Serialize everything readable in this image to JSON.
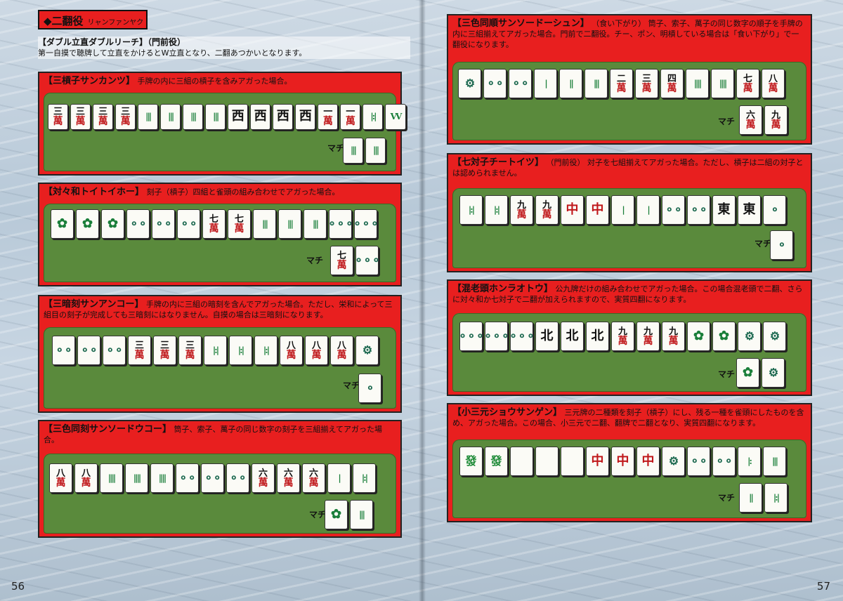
{
  "left_page": {
    "page_number": "56",
    "section_tag": "◆二翻役",
    "section_tag_reading": "リャンファンヤク",
    "intro": {
      "heading": "【ダブル立直ダブルリーチ】（門前役）",
      "text": "第一自摸で聴牌して立直をかけるとW立直となり、二翻あつかいとなります。"
    },
    "panels": [
      {
        "title": "【三槓子サンカンツ】",
        "desc": "手牌の内に三組の槓子を含みアガった場合。",
        "tiles": [
          [
            "n",
            "三",
            "m",
            "萬"
          ],
          [
            "n",
            "三",
            "m",
            "萬"
          ],
          [
            "n",
            "三",
            "m",
            "萬"
          ],
          [
            "n",
            "三",
            "m",
            "萬"
          ],
          [
            "s",
            "|||"
          ],
          [
            "s",
            "|||"
          ],
          [
            "s",
            "|||"
          ],
          [
            "s",
            "|||"
          ],
          [
            "h",
            "西"
          ],
          [
            "h",
            "西"
          ],
          [
            "h",
            "西"
          ],
          [
            "h",
            "西"
          ],
          [
            "n",
            "一",
            "m",
            "萬"
          ],
          [
            "n",
            "一",
            "m",
            "萬"
          ],
          [
            "s",
            "|:|"
          ],
          [
            "s",
            "VV"
          ]
        ],
        "machi_label": "マチ",
        "wait": [
          [
            "s",
            "|||"
          ],
          [
            "s",
            "|||"
          ]
        ]
      },
      {
        "title": "【対々和トイトイホー】",
        "desc": "刻子（槓子）四組と雀頭の組み合わせでアガった場合。",
        "tiles": [
          [
            "b",
            "✿"
          ],
          [
            "b",
            "✿"
          ],
          [
            "b",
            "✿"
          ],
          [
            "p",
            "⚬⚬"
          ],
          [
            "p",
            "⚬⚬"
          ],
          [
            "p",
            "⚬⚬"
          ],
          [
            "n",
            "七",
            "m",
            "萬"
          ],
          [
            "n",
            "七",
            "m",
            "萬"
          ],
          [
            "s",
            "|||"
          ],
          [
            "s",
            "|||"
          ],
          [
            "s",
            "|||"
          ],
          [
            "p",
            "⚬⚬⚬"
          ],
          [
            "p",
            "⚬⚬⚬"
          ]
        ],
        "machi_label": "マチ",
        "wait": [
          [
            "n",
            "七",
            "m",
            "萬"
          ],
          [
            "p",
            "⚬⚬⚬"
          ]
        ]
      },
      {
        "title": "【三暗刻サンアンコー】",
        "desc": "手牌の内に三組の暗刻を含んでアガった場合。ただし、栄和によって三組目の刻子が完成しても三暗刻にはなりません。自摸の場合は三暗刻になります。",
        "tiles": [
          [
            "p",
            "⚬⚬"
          ],
          [
            "p",
            "⚬⚬"
          ],
          [
            "p",
            "⚬⚬"
          ],
          [
            "n",
            "三",
            "m",
            "萬"
          ],
          [
            "n",
            "三",
            "m",
            "萬"
          ],
          [
            "n",
            "三",
            "m",
            "萬"
          ],
          [
            "s",
            "|:|"
          ],
          [
            "s",
            "|:|"
          ],
          [
            "s",
            "|:|"
          ],
          [
            "n",
            "八",
            "m",
            "萬"
          ],
          [
            "n",
            "八",
            "m",
            "萬"
          ],
          [
            "n",
            "八",
            "m",
            "萬"
          ],
          [
            "p",
            "⚙"
          ]
        ],
        "machi_label": "マチ",
        "wait": [
          [
            "p",
            "⚬"
          ]
        ]
      },
      {
        "title": "【三色同刻サンソードウコー】",
        "desc": "筒子、索子、萬子の同じ数字の刻子を三組揃えてアガった場合。",
        "tiles": [
          [
            "n",
            "八",
            "m",
            "萬"
          ],
          [
            "n",
            "八",
            "m",
            "萬"
          ],
          [
            "s",
            "||||"
          ],
          [
            "s",
            "||||"
          ],
          [
            "s",
            "||||"
          ],
          [
            "p",
            "⚬⚬"
          ],
          [
            "p",
            "⚬⚬"
          ],
          [
            "p",
            "⚬⚬"
          ],
          [
            "n",
            "六",
            "m",
            "萬"
          ],
          [
            "n",
            "六",
            "m",
            "萬"
          ],
          [
            "n",
            "六",
            "m",
            "萬"
          ],
          [
            "s",
            "|"
          ],
          [
            "s",
            "|:|"
          ]
        ],
        "machi_label": "マチ",
        "wait": [
          [
            "b",
            "✿"
          ],
          [
            "s",
            "|||"
          ]
        ]
      }
    ]
  },
  "right_page": {
    "page_number": "57",
    "panels": [
      {
        "title": "【三色同順サンソードーシュン】",
        "desc": "（食い下がり） 筒子、索子、萬子の同じ数字の順子を手牌の内に三組揃えてアガった場合。門前で二翻役。チー、ポン、明槓している場合は「食い下がり」で一翻役になります。",
        "tiles": [
          [
            "p",
            "⚙"
          ],
          [
            "p",
            "⚬⚬"
          ],
          [
            "p",
            "⚬⚬"
          ],
          [
            "s",
            "|"
          ],
          [
            "s",
            "||"
          ],
          [
            "s",
            "|||"
          ],
          [
            "n",
            "二",
            "m",
            "萬"
          ],
          [
            "n",
            "三",
            "m",
            "萬"
          ],
          [
            "n",
            "四",
            "m",
            "萬"
          ],
          [
            "s",
            "||||"
          ],
          [
            "s",
            "||||"
          ],
          [
            "n",
            "七",
            "m",
            "萬"
          ],
          [
            "n",
            "八",
            "m",
            "萬"
          ]
        ],
        "machi_label": "マチ",
        "wait": [
          [
            "n",
            "六",
            "m",
            "萬"
          ],
          [
            "n",
            "九",
            "m",
            "萬"
          ]
        ]
      },
      {
        "title": "【七対子チートイツ】",
        "desc": "（門前役） 対子を七組揃えてアガった場合。ただし、槓子は二組の対子とは認められません。",
        "tiles": [
          [
            "s",
            "|:|"
          ],
          [
            "s",
            "|:|"
          ],
          [
            "n",
            "九",
            "m",
            "萬"
          ],
          [
            "n",
            "九",
            "m",
            "萬"
          ],
          [
            "r",
            "中"
          ],
          [
            "r",
            "中"
          ],
          [
            "s",
            "|"
          ],
          [
            "s",
            "|"
          ],
          [
            "p",
            "⚬⚬"
          ],
          [
            "p",
            "⚬⚬"
          ],
          [
            "h",
            "東"
          ],
          [
            "h",
            "東"
          ],
          [
            "p",
            "⚬"
          ]
        ],
        "machi_label": "マチ",
        "wait": [
          [
            "p",
            "⚬"
          ]
        ]
      },
      {
        "title": "【混老頭ホンラオトウ】",
        "desc": "公九牌だけの組み合わせでアガった場合。この場合混老頭で二翻、さらに対々和か七対子で二翻が加えられますので、実質四翻になります。",
        "tiles": [
          [
            "p",
            "⚬⚬⚬"
          ],
          [
            "p",
            "⚬⚬⚬"
          ],
          [
            "p",
            "⚬⚬⚬"
          ],
          [
            "h",
            "北"
          ],
          [
            "h",
            "北"
          ],
          [
            "h",
            "北"
          ],
          [
            "n",
            "九",
            "m",
            "萬"
          ],
          [
            "n",
            "九",
            "m",
            "萬"
          ],
          [
            "n",
            "九",
            "m",
            "萬"
          ],
          [
            "b",
            "✿"
          ],
          [
            "b",
            "✿"
          ],
          [
            "p",
            "⚙"
          ],
          [
            "p",
            "⚙"
          ]
        ],
        "machi_label": "マチ",
        "wait": [
          [
            "b",
            "✿"
          ],
          [
            "p",
            "⚙"
          ]
        ]
      },
      {
        "title": "【小三元ショウサンゲン】",
        "desc": "三元牌の二種類を刻子（槓子）にし、残る一種を雀頭にしたものを含め、アガった場合。この場合、小三元で二翻、翻牌で二翻となり、実質四翻になります。",
        "tiles": [
          [
            "g",
            "發"
          ],
          [
            "g",
            "發"
          ],
          [
            "h",
            ""
          ],
          [
            "h",
            ""
          ],
          [
            "h",
            ""
          ],
          [
            "r",
            "中"
          ],
          [
            "r",
            "中"
          ],
          [
            "r",
            "中"
          ],
          [
            "p",
            "⚙"
          ],
          [
            "p",
            "⚬⚬"
          ],
          [
            "p",
            "⚬⚬"
          ],
          [
            "s",
            "|:"
          ],
          [
            "s",
            "|||"
          ]
        ],
        "machi_label": "マチ",
        "wait": [
          [
            "s",
            "||"
          ],
          [
            "s",
            "|:|"
          ]
        ]
      }
    ]
  }
}
